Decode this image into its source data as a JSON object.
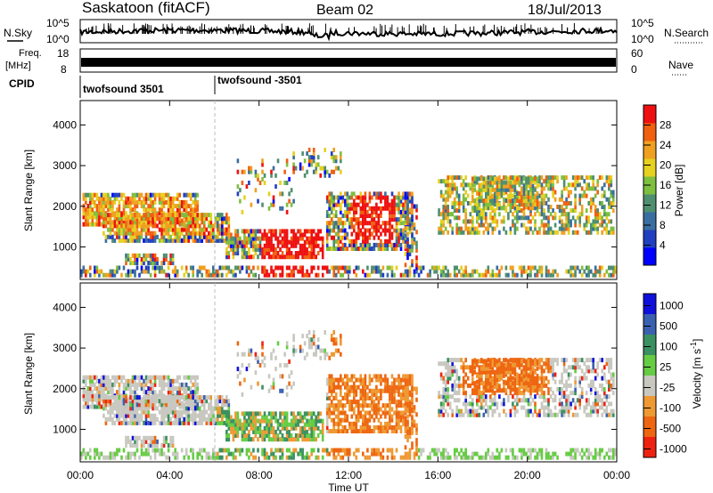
{
  "header": {
    "station": "Saskatoon (fitACF)",
    "beam": "Beam 02",
    "date": "18/Jul/2013"
  },
  "noise_panel": {
    "left_label": "N.Sky",
    "right_label": "N.Search",
    "left_ticks": [
      "10^5",
      "10^0"
    ],
    "right_ticks": [
      "10^5",
      "10^0"
    ]
  },
  "freq_panel": {
    "left_label_1": "Freq.",
    "left_label_2": "[MHz]",
    "right_label": "Nave",
    "left_ticks": [
      "18",
      "8"
    ],
    "right_ticks": [
      "60",
      "0"
    ]
  },
  "cpid": {
    "label": "CPID",
    "segments": [
      "twofsound 3501",
      "twofsound -3501"
    ]
  },
  "colors": {
    "power_scale": [
      "#0000ff",
      "#2040c0",
      "#3a6ea0",
      "#4f8f6f",
      "#7fbf3f",
      "#e6d020",
      "#f0a020",
      "#f06010",
      "#ee1010"
    ],
    "velocity_scale": [
      "#1010dd",
      "#3a60b0",
      "#3a9060",
      "#66cc44",
      "#c8c8c0",
      "#ee9933",
      "#ee6611",
      "#ee2211"
    ]
  },
  "chart_data": [
    {
      "type": "heatmap",
      "title": "",
      "xlabel": "",
      "ylabel": "Slant Range [km]",
      "x_ticks": [
        "00:00",
        "04:00",
        "08:00",
        "12:00",
        "16:00",
        "20:00",
        "00:00"
      ],
      "y_ticks": [
        "1000",
        "2000",
        "3000",
        "4000"
      ],
      "ylim": [
        200,
        4600
      ],
      "colorbar_label": "Power [dB]",
      "colorbar_ticks": [
        "4",
        "8",
        "12",
        "16",
        "20",
        "24",
        "28"
      ],
      "colorbar_range": [
        0,
        30
      ]
    },
    {
      "type": "heatmap",
      "title": "",
      "xlabel": "Time UT",
      "ylabel": "Slant Range [km]",
      "x_ticks": [
        "00:00",
        "04:00",
        "08:00",
        "12:00",
        "16:00",
        "20:00",
        "00:00"
      ],
      "y_ticks": [
        "1000",
        "2000",
        "3000",
        "4000"
      ],
      "ylim": [
        200,
        4600
      ],
      "colorbar_label": "Velocity [m s^-1]",
      "colorbar_ticks": [
        "1000",
        "500",
        "100",
        "25",
        "-25",
        "-100",
        "-500",
        "-1000"
      ]
    }
  ]
}
